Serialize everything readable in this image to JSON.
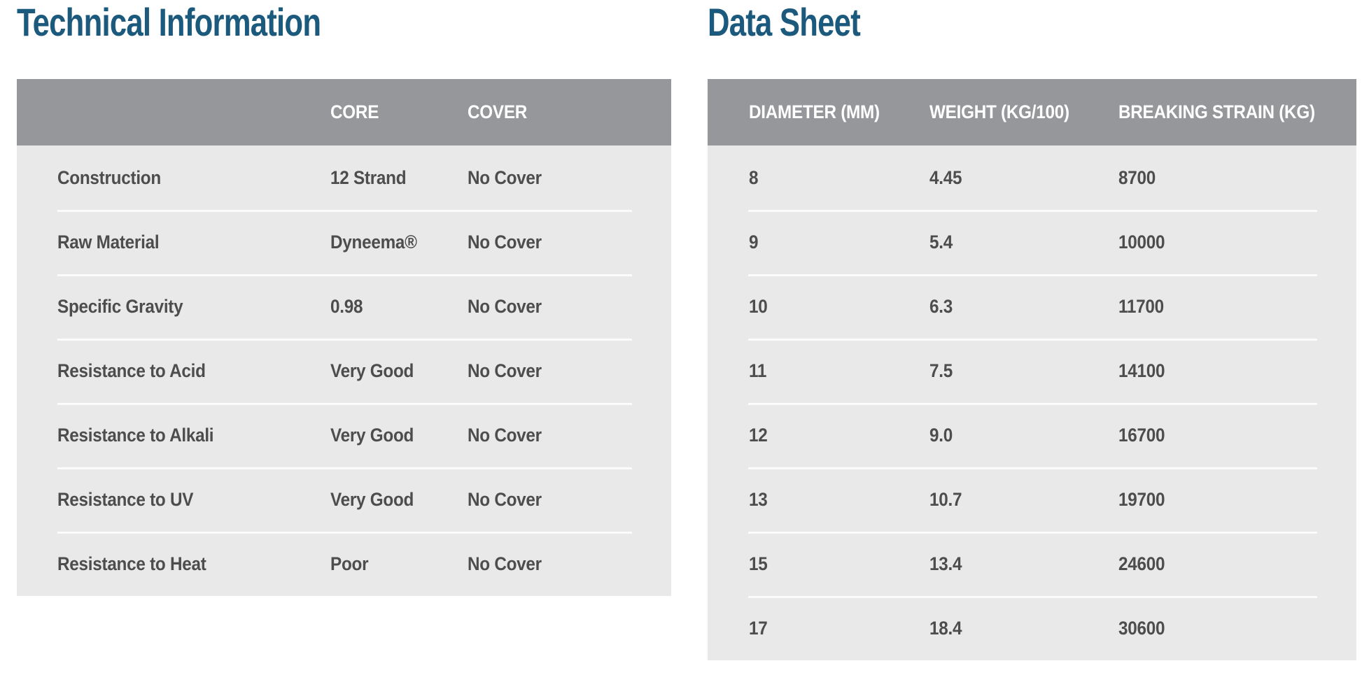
{
  "colors": {
    "title_text": "#1C5A7D",
    "header_background": "#96979A",
    "header_text": "#FFFFFF",
    "body_background": "#E9E9E9",
    "body_text": "#4D4D4D",
    "row_separator": "#FBFBFB",
    "page_background": "#FFFFFF"
  },
  "technical_information": {
    "title": "Technical Information",
    "columns": [
      "",
      "CORE",
      "COVER"
    ],
    "rows": [
      [
        "Construction",
        "12 Strand",
        "No Cover"
      ],
      [
        "Raw Material",
        "Dyneema®",
        "No Cover"
      ],
      [
        "Specific Gravity",
        "0.98",
        "No Cover"
      ],
      [
        "Resistance to Acid",
        "Very Good",
        "No Cover"
      ],
      [
        "Resistance to Alkali",
        "Very Good",
        "No Cover"
      ],
      [
        "Resistance to UV",
        "Very Good",
        "No Cover"
      ],
      [
        "Resistance to Heat",
        "Poor",
        "No Cover"
      ]
    ]
  },
  "data_sheet": {
    "title": "Data Sheet",
    "columns": [
      "DIAMETER (MM)",
      "WEIGHT (KG/100)",
      "BREAKING STRAIN (KG)"
    ],
    "rows": [
      [
        "8",
        "4.45",
        "8700"
      ],
      [
        "9",
        "5.4",
        "10000"
      ],
      [
        "10",
        "6.3",
        "11700"
      ],
      [
        "11",
        "7.5",
        "14100"
      ],
      [
        "12",
        "9.0",
        "16700"
      ],
      [
        "13",
        "10.7",
        "19700"
      ],
      [
        "15",
        "13.4",
        "24600"
      ],
      [
        "17",
        "18.4",
        "30600"
      ]
    ]
  }
}
